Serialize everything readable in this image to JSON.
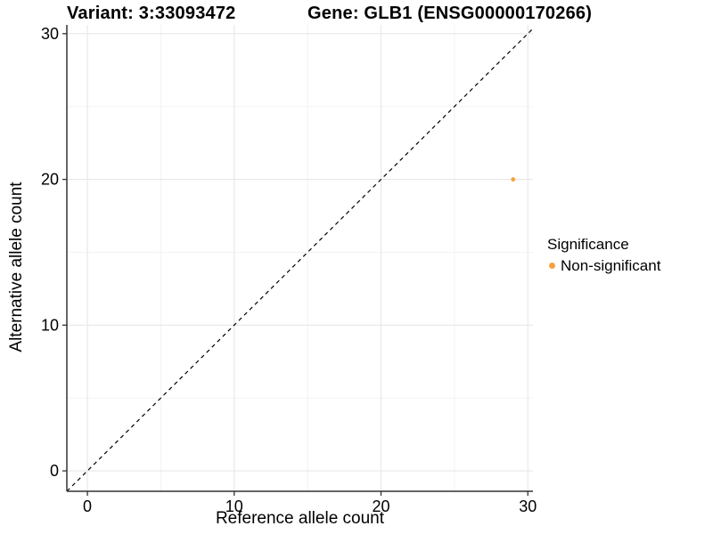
{
  "chart_data": {
    "type": "scatter",
    "title_left": "Variant: 3:33093472",
    "title_right": "Gene: GLB1 (ENSG00000170266)",
    "xlabel": "Reference allele count",
    "ylabel": "Alternative allele count",
    "xlim": [
      -1.4,
      30.35
    ],
    "ylim": [
      -1.4,
      30.6
    ],
    "x_ticks": [
      0,
      10,
      20,
      30
    ],
    "y_ticks": [
      0,
      10,
      20,
      30
    ],
    "x_minor_ticks": [
      5,
      15,
      25
    ],
    "y_minor_ticks": [
      5,
      15,
      25
    ],
    "grid": "major+minor",
    "reference_line": {
      "type": "identity",
      "equation": "y = x",
      "style": "dashed",
      "color": "#000000"
    },
    "series": [
      {
        "name": "Non-significant",
        "color": "#F9A13C",
        "points": [
          {
            "x": 29,
            "y": 20
          }
        ]
      }
    ],
    "legend": {
      "title": "Significance",
      "position": "right",
      "entries": [
        {
          "label": "Non-significant",
          "color": "#F9A13C"
        }
      ]
    }
  },
  "colors": {
    "point_orange": "#F9A13C",
    "grid_major": "#E7E7E7",
    "grid_minor": "#F3F3F3",
    "axis_line": "#333333",
    "tick_label": "#000000",
    "background": "#FFFFFF"
  }
}
